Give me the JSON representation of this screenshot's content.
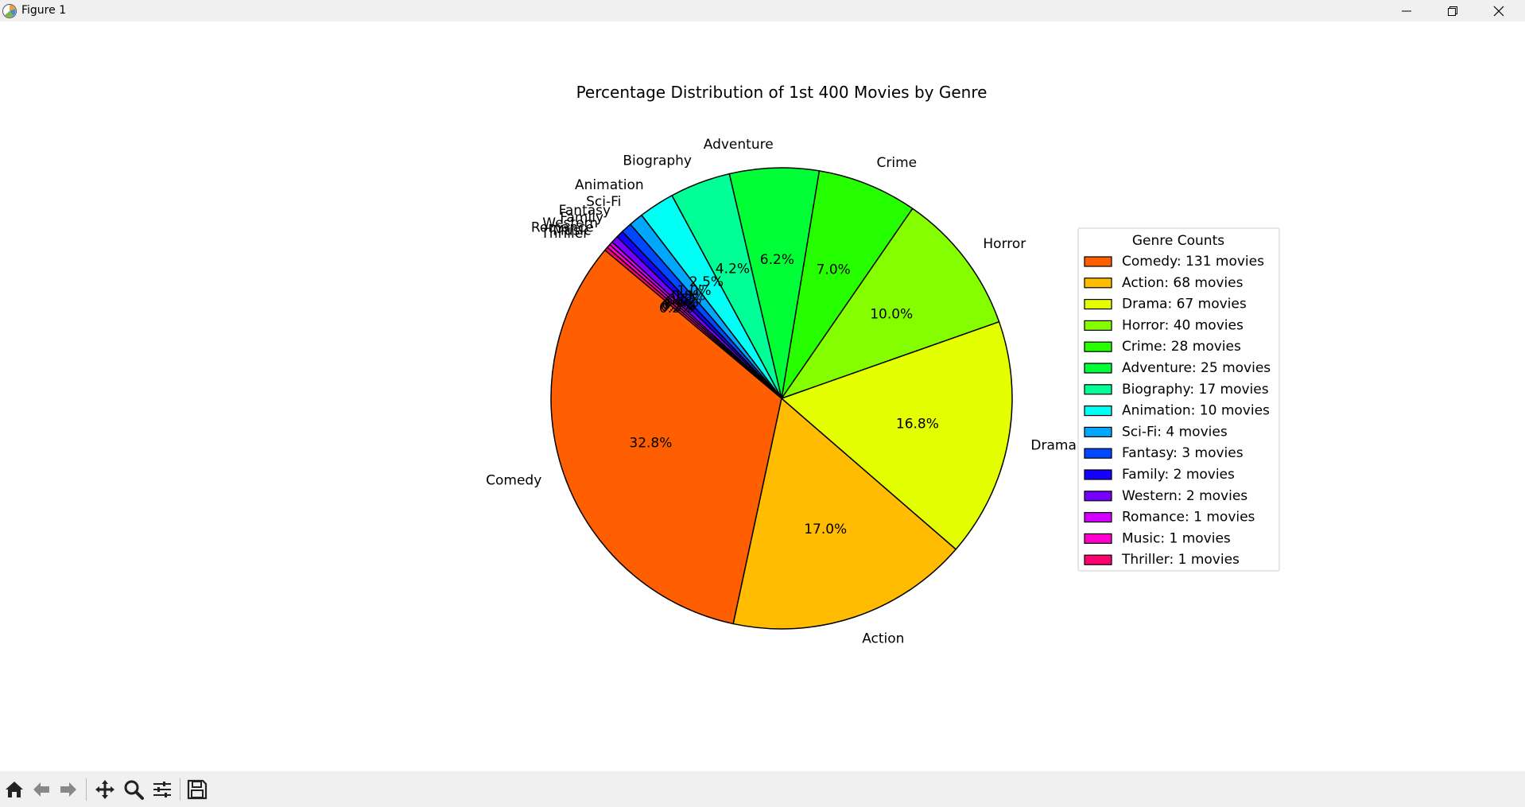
{
  "window": {
    "title": "Figure 1",
    "icons": [
      "matplotlib-logo-icon",
      "minimize-icon",
      "maximize-icon",
      "close-icon"
    ]
  },
  "toolbar": {
    "buttons": [
      "home-icon",
      "back-arrow-icon",
      "forward-arrow-icon",
      "pan-icon",
      "zoom-icon",
      "configure-subplots-icon",
      "save-icon"
    ]
  },
  "chart_data": {
    "type": "pie",
    "title": "Percentage Distribution of 1st 400 Movies by Genre",
    "start_angle_deg": 140,
    "direction": "counterclockwise",
    "edge_color": "#000000",
    "categories": [
      "Comedy",
      "Action",
      "Drama",
      "Horror",
      "Crime",
      "Adventure",
      "Biography",
      "Animation",
      "Sci-Fi",
      "Fantasy",
      "Family",
      "Western",
      "Romance",
      "Music",
      "Thriller"
    ],
    "values": [
      131,
      68,
      67,
      40,
      28,
      25,
      17,
      10,
      4,
      3,
      2,
      2,
      1,
      1,
      1
    ],
    "percent_labels": [
      "32.8%",
      "17.0%",
      "16.8%",
      "10.0%",
      "7.0%",
      "6.2%",
      "4.2%",
      "2.5%",
      "1.0%",
      "0.8%",
      "0.5%",
      "0.5%",
      "0.2%",
      "0.2%",
      "0.2%"
    ],
    "colors": [
      "#ff5f00",
      "#ffbc00",
      "#e3ff00",
      "#85ff00",
      "#26ff00",
      "#00ff37",
      "#00ff96",
      "#00fff4",
      "#00a7ff",
      "#0048ff",
      "#1600ff",
      "#7500ff",
      "#d400ff",
      "#ff00cd",
      "#ff006e"
    ],
    "legend": {
      "title": "Genre Counts",
      "placement": "right",
      "entries": [
        "Comedy: 131 movies",
        "Action: 68 movies",
        "Drama: 67 movies",
        "Horror: 40 movies",
        "Crime: 28 movies",
        "Adventure: 25 movies",
        "Biography: 17 movies",
        "Animation: 10 movies",
        "Sci-Fi: 4 movies",
        "Fantasy: 3 movies",
        "Family: 2 movies",
        "Western: 2 movies",
        "Romance: 1 movies",
        "Music: 1 movies",
        "Thriller: 1 movies"
      ]
    }
  }
}
